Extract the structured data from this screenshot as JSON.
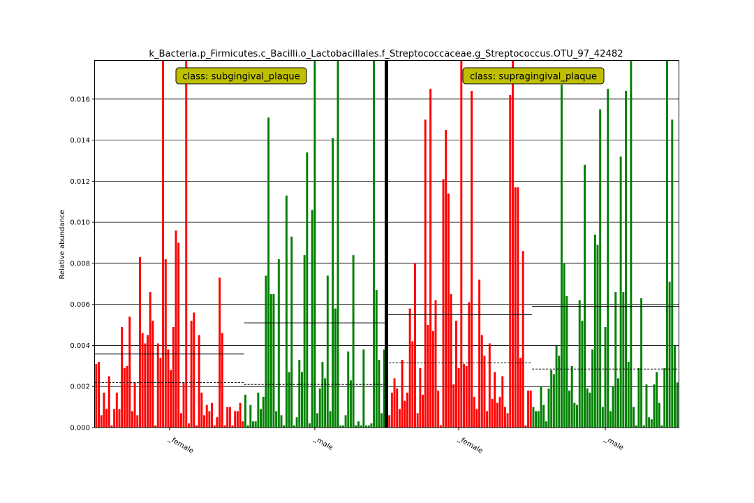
{
  "chart_data": {
    "type": "bar",
    "title": "k_Bacteria.p_Firmicutes.c_Bacilli.o_Lactobacillales.f_Streptococcaceae.g_Streptococcus.OTU_97_42482",
    "xlabel": "",
    "ylabel": "Relative abundance",
    "ylim": [
      0,
      0.0179
    ],
    "yticks": [
      "0.000",
      "0.002",
      "0.004",
      "0.006",
      "0.008",
      "0.010",
      "0.012",
      "0.014",
      "0.016"
    ],
    "grid": "horizontal",
    "colors": {
      "female": "#ff0000",
      "male": "#008000",
      "class_box": "#bfbf00",
      "divider": "#000000"
    },
    "classes": [
      {
        "name": "class: subgingival_plaque",
        "groups": [
          {
            "label": "_female",
            "color": "#ff0000",
            "mean": 0.00358,
            "median": 0.0022,
            "values": [
              0.0031,
              0.0032,
              0.0006,
              0.0017,
              0.0009,
              0.0025,
              0.0001,
              0.0009,
              0.0017,
              0.0009,
              0.0049,
              0.0029,
              0.003,
              0.0054,
              0.0008,
              0.0022,
              0.0006,
              0.0083,
              0.0046,
              0.0041,
              0.0045,
              0.0066,
              0.0052,
              0.0001,
              0.0041,
              0.0034,
              0.0179,
              0.0082,
              0.0038,
              0.0028,
              0.0049,
              0.0096,
              0.009,
              0.0007,
              0.0022,
              0.0179,
              0.0002,
              0.0052,
              0.0056,
              0.0001,
              0.0045,
              0.0017,
              0.0006,
              0.0011,
              0.0008,
              0.0012,
              0.0001,
              0.0005,
              0.0073,
              0.0046,
              0.0001,
              0.001,
              0.001,
              0.0001,
              0.0008,
              0.0008,
              0.0012,
              0.0003
            ]
          },
          {
            "label": "_male",
            "color": "#008000",
            "mean": 0.0051,
            "median": 0.0021,
            "values": [
              0.0016,
              0.0001,
              0.0011,
              0.0003,
              0.0003,
              0.0017,
              0.0009,
              0.0015,
              0.0074,
              0.0151,
              0.0065,
              0.0065,
              0.0008,
              0.0082,
              0.0006,
              0.0001,
              0.0113,
              0.0027,
              0.0093,
              0.0001,
              0.0005,
              0.0033,
              0.0027,
              0.0084,
              0.0134,
              0.0002,
              0.0106,
              0.0179,
              0.0007,
              0.0019,
              0.0032,
              0.0024,
              0.0074,
              0.0008,
              0.0141,
              0.0058,
              0.0179,
              0.0001,
              0.0001,
              0.0006,
              0.0037,
              0.0023,
              0.0084,
              0.0001,
              0.0003,
              0.0001,
              0.0038,
              0.0001,
              0.0001,
              0.0002,
              0.0179,
              0.0067,
              0.0033,
              0.0007,
              0.0038
            ]
          }
        ]
      },
      {
        "name": "class: supragingival_plaque",
        "groups": [
          {
            "label": "_female",
            "color": "#ff0000",
            "mean": 0.0055,
            "median": 0.00315,
            "values": [
              0.0031,
              0.0006,
              0.0017,
              0.0024,
              0.0019,
              0.0009,
              0.0033,
              0.0013,
              0.0017,
              0.0058,
              0.0042,
              0.008,
              0.0007,
              0.0029,
              0.0016,
              0.015,
              0.005,
              0.0165,
              0.0047,
              0.0062,
              0.0018,
              0.0001,
              0.0121,
              0.0145,
              0.0114,
              0.0065,
              0.0021,
              0.0052,
              0.0029,
              0.0179,
              0.0031,
              0.003,
              0.0061,
              0.0164,
              0.0015,
              0.0009,
              0.0072,
              0.0045,
              0.0035,
              0.0008,
              0.0041,
              0.0014,
              0.0027,
              0.0012,
              0.0015,
              0.0025,
              0.001,
              0.0007,
              0.0162,
              0.0179,
              0.0117,
              0.0117,
              0.0034,
              0.0086,
              0.0001,
              0.0018,
              0.0018
            ]
          },
          {
            "label": "_male",
            "color": "#008000",
            "mean": 0.0059,
            "median": 0.00285,
            "values": [
              0.001,
              0.0008,
              0.0008,
              0.002,
              0.0011,
              0.0003,
              0.0019,
              0.0028,
              0.0026,
              0.004,
              0.0035,
              0.0167,
              0.008,
              0.0064,
              0.0018,
              0.003,
              0.0012,
              0.0011,
              0.0062,
              0.0052,
              0.0128,
              0.0019,
              0.0017,
              0.0038,
              0.0094,
              0.0089,
              0.0155,
              0.001,
              0.0049,
              0.0165,
              0.0008,
              0.002,
              0.0066,
              0.0024,
              0.0132,
              0.0066,
              0.0164,
              0.0032,
              0.0179,
              0.001,
              0.0001,
              0.0029,
              0.0063,
              0.0001,
              0.0021,
              0.0005,
              0.0004,
              0.0021,
              0.0027,
              0.0012,
              0.0001,
              0.0029,
              0.0179,
              0.0071,
              0.015,
              0.004,
              0.0022
            ]
          }
        ]
      }
    ]
  }
}
